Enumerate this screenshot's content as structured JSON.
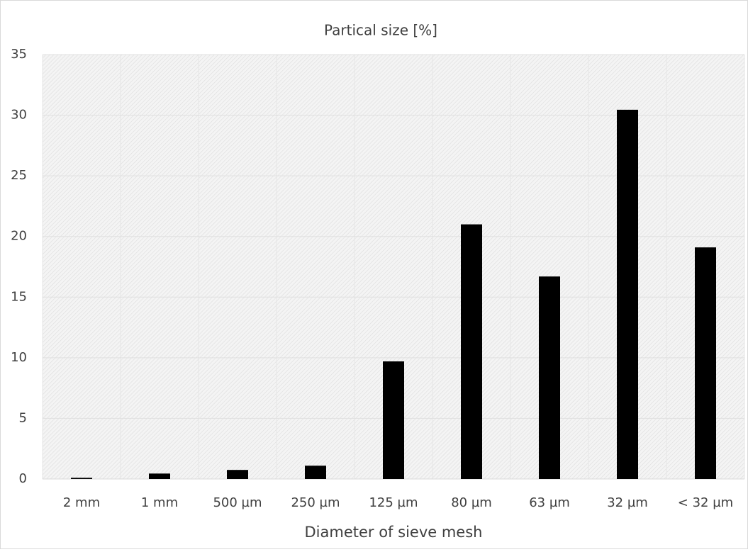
{
  "chart_data": {
    "type": "bar",
    "title": "Partical size [%]",
    "x_label": "Diameter of sieve mesh",
    "categories": [
      "2 mm",
      "1 mm",
      "500 µm",
      "250 µm",
      "125 µm",
      "80 µm",
      "63 µm",
      "32 µm",
      "< 32 µm"
    ],
    "values": [
      0.1,
      0.45,
      0.75,
      1.1,
      9.7,
      21.0,
      16.7,
      30.45,
      19.1
    ],
    "color": "#000000",
    "ylim": [
      0,
      35
    ],
    "yticks": [
      0,
      5,
      10,
      15,
      20,
      25,
      30,
      35
    ],
    "grid": true
  }
}
